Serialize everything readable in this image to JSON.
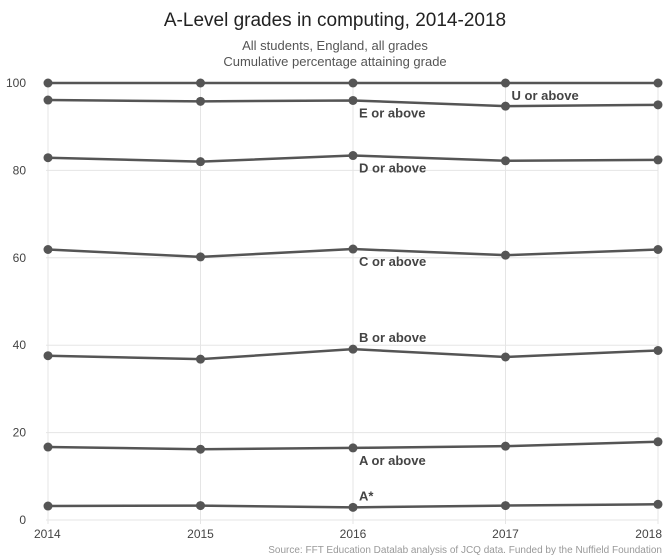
{
  "chart_data": {
    "type": "line",
    "title": "A-Level grades in computing, 2014-2018",
    "subtitle_lines": [
      "All students, England, all grades",
      "Cumulative percentage attaining grade"
    ],
    "source": "Source: FFT Education Datalab analysis of JCQ data. Funded by the Nuffield Foundation",
    "xlabel": "",
    "ylabel": "",
    "categories": [
      "2014",
      "2015",
      "2016",
      "2017",
      "2018"
    ],
    "ylim": [
      0,
      100
    ],
    "yticks": [
      0,
      20,
      40,
      60,
      80,
      100
    ],
    "grid": true,
    "line_color": "#555555",
    "grid_color": "#e5e5e5",
    "series": [
      {
        "name": "U or above",
        "values": [
          100,
          100,
          100,
          100,
          100
        ],
        "label_at": "2017",
        "label_side": "below"
      },
      {
        "name": "E or above",
        "values": [
          96.1,
          95.8,
          96.0,
          94.7,
          95.0
        ],
        "label_at": "2016",
        "label_side": "below"
      },
      {
        "name": "D or above",
        "values": [
          82.9,
          82.0,
          83.4,
          82.2,
          82.4
        ],
        "label_at": "2016",
        "label_side": "below"
      },
      {
        "name": "C or above",
        "values": [
          61.9,
          60.2,
          62.0,
          60.6,
          61.9
        ],
        "label_at": "2016",
        "label_side": "below"
      },
      {
        "name": "B or above",
        "values": [
          37.6,
          36.8,
          39.1,
          37.3,
          38.8
        ],
        "label_at": "2016",
        "label_side": "above"
      },
      {
        "name": "A or above",
        "values": [
          16.7,
          16.2,
          16.5,
          16.9,
          17.9
        ],
        "label_at": "2016",
        "label_side": "below"
      },
      {
        "name": "A*",
        "values": [
          3.2,
          3.3,
          2.9,
          3.3,
          3.6
        ],
        "label_at": "2016",
        "label_side": "above"
      }
    ]
  }
}
